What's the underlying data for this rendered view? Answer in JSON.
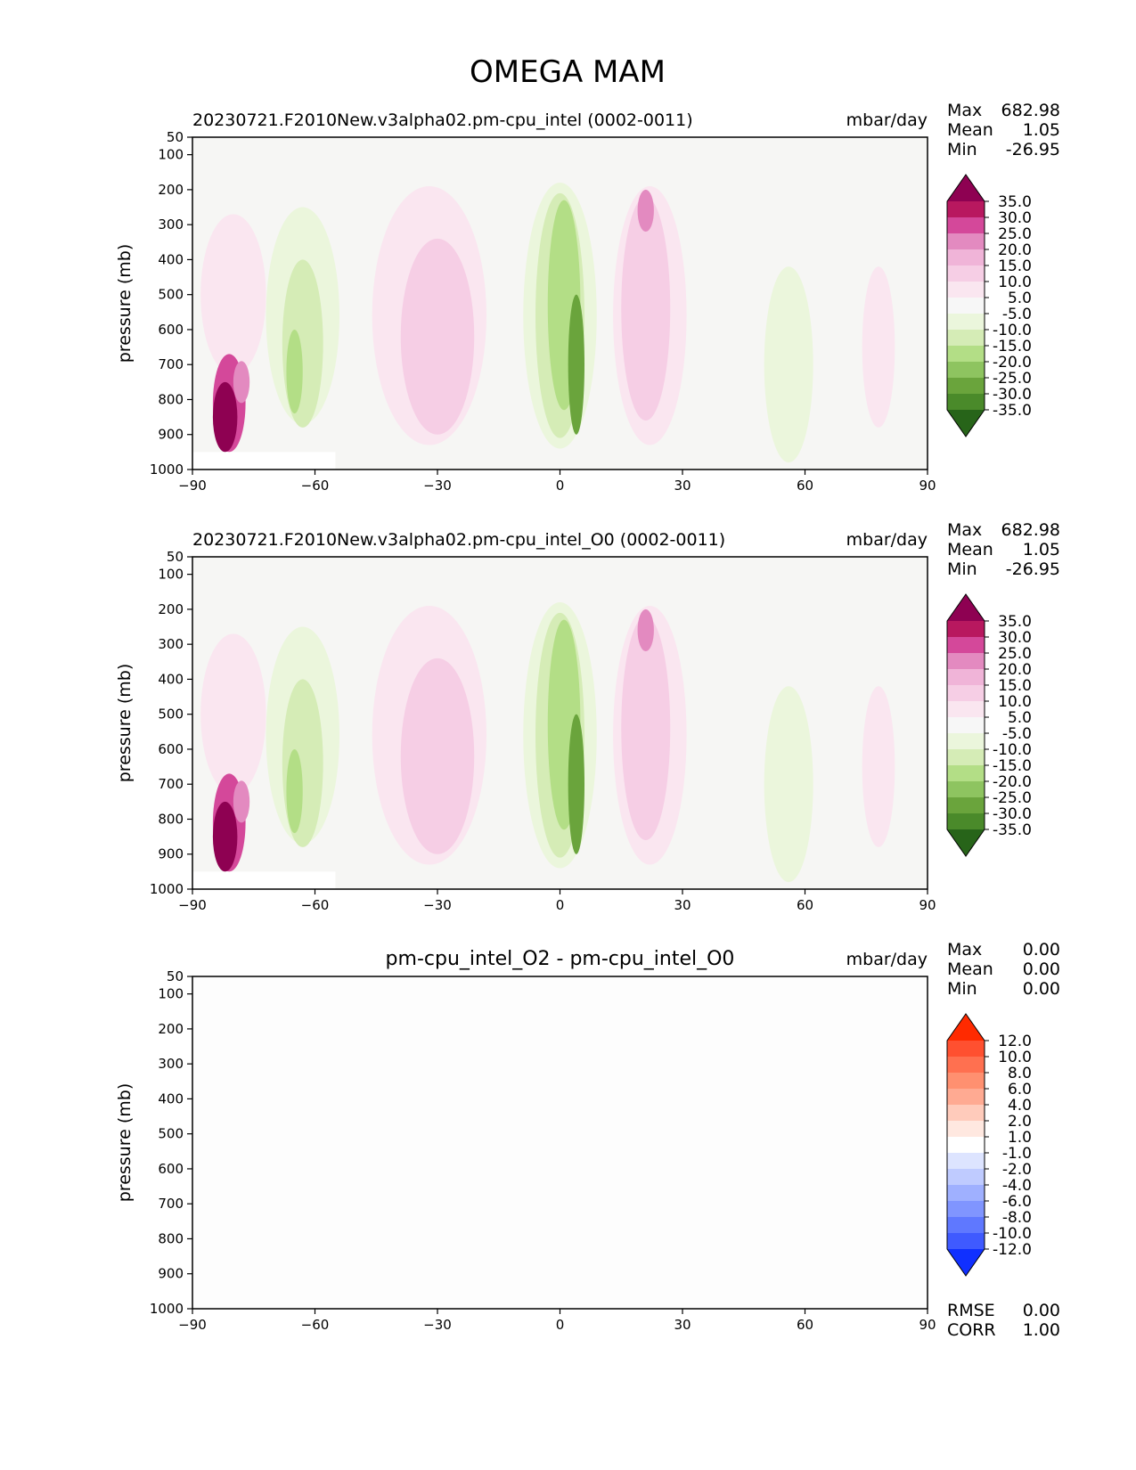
{
  "figure": {
    "title": "OMEGA MAM"
  },
  "chart_data": [
    {
      "type": "contour",
      "title": "20230721.F2010New.v3alpha02.pm-cpu_intel (0002-0011)",
      "units": "mbar/day",
      "ylabel": "pressure (mb)",
      "xlim": [
        -90,
        90
      ],
      "ylim": [
        1000,
        50
      ],
      "xticks": [
        "−90",
        "−60",
        "−30",
        "0",
        "30",
        "60",
        "90"
      ],
      "xtick_values": [
        -90,
        -60,
        -30,
        0,
        30,
        60,
        90
      ],
      "yticks": [
        "50",
        "100",
        "200",
        "300",
        "400",
        "500",
        "600",
        "700",
        "800",
        "900",
        "1000"
      ],
      "ytick_values": [
        50,
        100,
        200,
        300,
        400,
        500,
        600,
        700,
        800,
        900,
        1000
      ],
      "stats": {
        "labels": [
          "Max",
          "Mean",
          "Min"
        ],
        "values": [
          "682.98",
          "1.05",
          "-26.95"
        ]
      },
      "colorbar": {
        "labels": [
          "35.0",
          "30.0",
          "25.0",
          "20.0",
          "15.0",
          "10.0",
          "5.0",
          "-5.0",
          "-10.0",
          "-15.0",
          "-20.0",
          "-25.0",
          "-30.0",
          "-35.0"
        ],
        "colors": [
          "#8e0152",
          "#b8185f",
          "#d4489a",
          "#e38ac0",
          "#f0b4d8",
          "#f6cee5",
          "#fae6f0",
          "#f7f7f7",
          "#ebf6dc",
          "#d5ecb6",
          "#b3de86",
          "#8ec460",
          "#6aa43c",
          "#4a8a2a",
          "#276419"
        ]
      },
      "blobs": [
        {
          "lat": -80,
          "p": 500,
          "rlat": 8,
          "rp": 230,
          "color": "#fae6f0"
        },
        {
          "lat": -81,
          "p": 810,
          "rlat": 4,
          "rp": 140,
          "color": "#d4489a"
        },
        {
          "lat": -82,
          "p": 850,
          "rlat": 3,
          "rp": 100,
          "color": "#8e0152"
        },
        {
          "lat": -78,
          "p": 750,
          "rlat": 2,
          "rp": 60,
          "color": "#e38ac0"
        },
        {
          "lat": -63,
          "p": 560,
          "rlat": 9,
          "rp": 310,
          "color": "#ebf6dc"
        },
        {
          "lat": -63,
          "p": 640,
          "rlat": 5,
          "rp": 240,
          "color": "#d5ecb6"
        },
        {
          "lat": -65,
          "p": 720,
          "rlat": 2,
          "rp": 120,
          "color": "#b3de86"
        },
        {
          "lat": -32,
          "p": 560,
          "rlat": 14,
          "rp": 370,
          "color": "#fae6f0"
        },
        {
          "lat": -30,
          "p": 620,
          "rlat": 9,
          "rp": 280,
          "color": "#f6cee5"
        },
        {
          "lat": 0,
          "p": 560,
          "rlat": 9,
          "rp": 380,
          "color": "#ebf6dc"
        },
        {
          "lat": 0,
          "p": 560,
          "rlat": 6,
          "rp": 350,
          "color": "#d5ecb6"
        },
        {
          "lat": 1,
          "p": 530,
          "rlat": 4,
          "rp": 300,
          "color": "#b3de86"
        },
        {
          "lat": 4,
          "p": 700,
          "rlat": 2,
          "rp": 200,
          "color": "#6aa43c"
        },
        {
          "lat": 22,
          "p": 560,
          "rlat": 9,
          "rp": 370,
          "color": "#fae6f0"
        },
        {
          "lat": 21,
          "p": 540,
          "rlat": 6,
          "rp": 320,
          "color": "#f6cee5"
        },
        {
          "lat": 21,
          "p": 260,
          "rlat": 2,
          "rp": 60,
          "color": "#e38ac0"
        },
        {
          "lat": 56,
          "p": 700,
          "rlat": 6,
          "rp": 280,
          "color": "#ebf6dc"
        },
        {
          "lat": 78,
          "p": 650,
          "rlat": 4,
          "rp": 230,
          "color": "#fae6f0"
        }
      ]
    },
    {
      "type": "contour",
      "title": "20230721.F2010New.v3alpha02.pm-cpu_intel_O0 (0002-0011)",
      "units": "mbar/day",
      "ylabel": "pressure (mb)",
      "xlim": [
        -90,
        90
      ],
      "ylim": [
        1000,
        50
      ],
      "xticks": [
        "−90",
        "−60",
        "−30",
        "0",
        "30",
        "60",
        "90"
      ],
      "xtick_values": [
        -90,
        -60,
        -30,
        0,
        30,
        60,
        90
      ],
      "yticks": [
        "50",
        "100",
        "200",
        "300",
        "400",
        "500",
        "600",
        "700",
        "800",
        "900",
        "1000"
      ],
      "ytick_values": [
        50,
        100,
        200,
        300,
        400,
        500,
        600,
        700,
        800,
        900,
        1000
      ],
      "stats": {
        "labels": [
          "Max",
          "Mean",
          "Min"
        ],
        "values": [
          "682.98",
          "1.05",
          "-26.95"
        ]
      },
      "colorbar": {
        "labels": [
          "35.0",
          "30.0",
          "25.0",
          "20.0",
          "15.0",
          "10.0",
          "5.0",
          "-5.0",
          "-10.0",
          "-15.0",
          "-20.0",
          "-25.0",
          "-30.0",
          "-35.0"
        ],
        "colors": [
          "#8e0152",
          "#b8185f",
          "#d4489a",
          "#e38ac0",
          "#f0b4d8",
          "#f6cee5",
          "#fae6f0",
          "#f7f7f7",
          "#ebf6dc",
          "#d5ecb6",
          "#b3de86",
          "#8ec460",
          "#6aa43c",
          "#4a8a2a",
          "#276419"
        ]
      },
      "blobs": [
        {
          "lat": -80,
          "p": 500,
          "rlat": 8,
          "rp": 230,
          "color": "#fae6f0"
        },
        {
          "lat": -81,
          "p": 810,
          "rlat": 4,
          "rp": 140,
          "color": "#d4489a"
        },
        {
          "lat": -82,
          "p": 850,
          "rlat": 3,
          "rp": 100,
          "color": "#8e0152"
        },
        {
          "lat": -78,
          "p": 750,
          "rlat": 2,
          "rp": 60,
          "color": "#e38ac0"
        },
        {
          "lat": -63,
          "p": 560,
          "rlat": 9,
          "rp": 310,
          "color": "#ebf6dc"
        },
        {
          "lat": -63,
          "p": 640,
          "rlat": 5,
          "rp": 240,
          "color": "#d5ecb6"
        },
        {
          "lat": -65,
          "p": 720,
          "rlat": 2,
          "rp": 120,
          "color": "#b3de86"
        },
        {
          "lat": -32,
          "p": 560,
          "rlat": 14,
          "rp": 370,
          "color": "#fae6f0"
        },
        {
          "lat": -30,
          "p": 620,
          "rlat": 9,
          "rp": 280,
          "color": "#f6cee5"
        },
        {
          "lat": 0,
          "p": 560,
          "rlat": 9,
          "rp": 380,
          "color": "#ebf6dc"
        },
        {
          "lat": 0,
          "p": 560,
          "rlat": 6,
          "rp": 350,
          "color": "#d5ecb6"
        },
        {
          "lat": 1,
          "p": 530,
          "rlat": 4,
          "rp": 300,
          "color": "#b3de86"
        },
        {
          "lat": 4,
          "p": 700,
          "rlat": 2,
          "rp": 200,
          "color": "#6aa43c"
        },
        {
          "lat": 22,
          "p": 560,
          "rlat": 9,
          "rp": 370,
          "color": "#fae6f0"
        },
        {
          "lat": 21,
          "p": 540,
          "rlat": 6,
          "rp": 320,
          "color": "#f6cee5"
        },
        {
          "lat": 21,
          "p": 260,
          "rlat": 2,
          "rp": 60,
          "color": "#e38ac0"
        },
        {
          "lat": 56,
          "p": 700,
          "rlat": 6,
          "rp": 280,
          "color": "#ebf6dc"
        },
        {
          "lat": 78,
          "p": 650,
          "rlat": 4,
          "rp": 230,
          "color": "#fae6f0"
        }
      ]
    },
    {
      "type": "contour",
      "title": "pm-cpu_intel_O2 - pm-cpu_intel_O0",
      "units": "mbar/day",
      "ylabel": "pressure (mb)",
      "xlim": [
        -90,
        90
      ],
      "ylim": [
        1000,
        50
      ],
      "xticks": [
        "−90",
        "−60",
        "−30",
        "0",
        "30",
        "60",
        "90"
      ],
      "xtick_values": [
        -90,
        -60,
        -30,
        0,
        30,
        60,
        90
      ],
      "yticks": [
        "50",
        "100",
        "200",
        "300",
        "400",
        "500",
        "600",
        "700",
        "800",
        "900",
        "1000"
      ],
      "ytick_values": [
        50,
        100,
        200,
        300,
        400,
        500,
        600,
        700,
        800,
        900,
        1000
      ],
      "stats": {
        "labels": [
          "Max",
          "Mean",
          "Min"
        ],
        "values": [
          "0.00",
          "0.00",
          "0.00"
        ]
      },
      "extra_stats": {
        "labels": [
          "RMSE",
          "CORR"
        ],
        "values": [
          "0.00",
          "1.00"
        ]
      },
      "colorbar": {
        "labels": [
          "12.0",
          "10.0",
          "8.0",
          "6.0",
          "4.0",
          "2.0",
          "1.0",
          "-1.0",
          "-2.0",
          "-4.0",
          "-6.0",
          "-8.0",
          "-10.0",
          "-12.0"
        ],
        "colors": [
          "#ff2a00",
          "#ff5030",
          "#ff7050",
          "#ff9070",
          "#ffaa92",
          "#ffcbbb",
          "#ffe8e0",
          "#ffffff",
          "#dde4ff",
          "#bfcbff",
          "#9fb0ff",
          "#8095ff",
          "#5f78ff",
          "#3f5aff",
          "#1030ff"
        ]
      },
      "blobs": []
    }
  ]
}
